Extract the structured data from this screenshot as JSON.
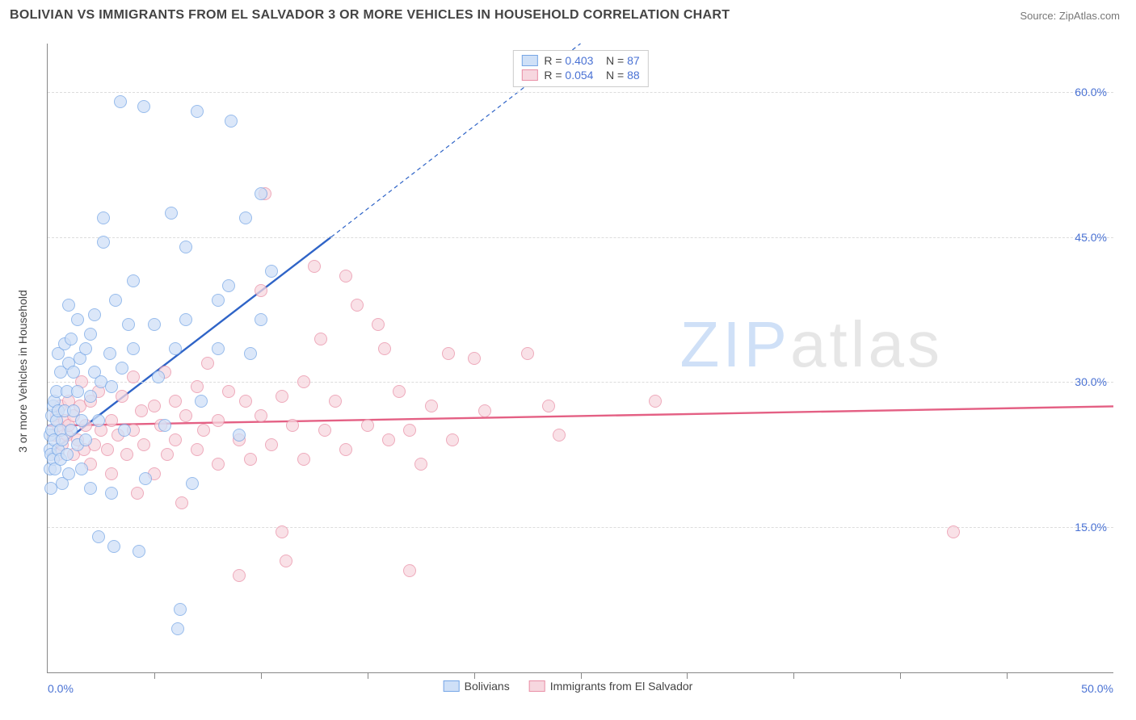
{
  "header": {
    "title": "BOLIVIAN VS IMMIGRANTS FROM EL SALVADOR 3 OR MORE VEHICLES IN HOUSEHOLD CORRELATION CHART",
    "source": "Source: ZipAtlas.com"
  },
  "chart": {
    "ylabel": "3 or more Vehicles in Household",
    "xlim": [
      0,
      50
    ],
    "ylim": [
      0,
      65
    ],
    "xticks": [
      0,
      50
    ],
    "xtick_labels": [
      "0.0%",
      "50.0%"
    ],
    "xticks_minor": [
      5,
      10,
      15,
      20,
      25,
      30,
      35,
      40,
      45
    ],
    "yticks": [
      15,
      30,
      45,
      60
    ],
    "ytick_labels": [
      "15.0%",
      "30.0%",
      "45.0%",
      "60.0%"
    ],
    "grid_color": "#dcdcdc",
    "axis_color": "#888888",
    "background": "#ffffff",
    "watermark": {
      "text_a": "ZIP",
      "text_b": "atlas",
      "color_a": "#cfe0f7",
      "color_b": "#e6e6e6"
    }
  },
  "series": {
    "a": {
      "label": "Bolivians",
      "R": "0.403",
      "N": "87",
      "marker_fill": "#cfe0f7",
      "marker_stroke": "#76a6e6",
      "line_color": "#2f64c7",
      "trend": {
        "x1": 0,
        "y1": 22.5,
        "x2": 13.3,
        "y2": 45.0
      },
      "trend_dash": {
        "x1": 13.3,
        "y1": 45.0,
        "x2": 25,
        "y2": 65
      },
      "points": [
        [
          0.1,
          21.0
        ],
        [
          0.1,
          23.0
        ],
        [
          0.12,
          24.5
        ],
        [
          0.15,
          19.0
        ],
        [
          0.15,
          22.5
        ],
        [
          0.18,
          26.5
        ],
        [
          0.2,
          25.0
        ],
        [
          0.25,
          27.5
        ],
        [
          0.25,
          22.0
        ],
        [
          0.3,
          24.0
        ],
        [
          0.3,
          28.0
        ],
        [
          0.35,
          21.0
        ],
        [
          0.4,
          26.0
        ],
        [
          0.4,
          29.0
        ],
        [
          0.5,
          23.0
        ],
        [
          0.5,
          27.0
        ],
        [
          0.5,
          33.0
        ],
        [
          0.6,
          22.0
        ],
        [
          0.6,
          25.0
        ],
        [
          0.6,
          31.0
        ],
        [
          0.7,
          19.5
        ],
        [
          0.7,
          24.0
        ],
        [
          0.8,
          27.0
        ],
        [
          0.8,
          34.0
        ],
        [
          0.9,
          22.5
        ],
        [
          0.9,
          29.0
        ],
        [
          1.0,
          20.5
        ],
        [
          1.0,
          32.0
        ],
        [
          1.0,
          38.0
        ],
        [
          1.1,
          25.0
        ],
        [
          1.1,
          34.5
        ],
        [
          1.2,
          27.0
        ],
        [
          1.2,
          31.0
        ],
        [
          1.4,
          23.5
        ],
        [
          1.4,
          29.0
        ],
        [
          1.4,
          36.5
        ],
        [
          1.5,
          32.5
        ],
        [
          1.6,
          21.0
        ],
        [
          1.6,
          26.0
        ],
        [
          1.8,
          24.0
        ],
        [
          1.8,
          33.5
        ],
        [
          2.0,
          19.0
        ],
        [
          2.0,
          28.5
        ],
        [
          2.0,
          35.0
        ],
        [
          2.2,
          31.0
        ],
        [
          2.2,
          37.0
        ],
        [
          2.4,
          14.0
        ],
        [
          2.4,
          26.0
        ],
        [
          2.5,
          30.0
        ],
        [
          2.6,
          47.0
        ],
        [
          2.9,
          33.0
        ],
        [
          3.0,
          18.5
        ],
        [
          3.0,
          29.5
        ],
        [
          3.1,
          13.0
        ],
        [
          3.4,
          59.0
        ],
        [
          3.5,
          31.5
        ],
        [
          3.6,
          25.0
        ],
        [
          4.0,
          33.5
        ],
        [
          4.0,
          40.5
        ],
        [
          4.3,
          12.5
        ],
        [
          4.5,
          58.5
        ],
        [
          4.6,
          20.0
        ],
        [
          5.0,
          36.0
        ],
        [
          5.2,
          30.5
        ],
        [
          5.5,
          25.5
        ],
        [
          5.8,
          47.5
        ],
        [
          6.0,
          33.5
        ],
        [
          6.1,
          4.5
        ],
        [
          6.2,
          6.5
        ],
        [
          6.5,
          44.0
        ],
        [
          6.5,
          36.5
        ],
        [
          6.8,
          19.5
        ],
        [
          7.0,
          58.0
        ],
        [
          7.2,
          28.0
        ],
        [
          8.0,
          33.5
        ],
        [
          8.0,
          38.5
        ],
        [
          8.5,
          40.0
        ],
        [
          8.6,
          57.0
        ],
        [
          9.0,
          24.5
        ],
        [
          9.3,
          47.0
        ],
        [
          9.5,
          33.0
        ],
        [
          10.0,
          49.5
        ],
        [
          10.0,
          36.5
        ],
        [
          10.5,
          41.5
        ],
        [
          2.6,
          44.5
        ],
        [
          3.2,
          38.5
        ],
        [
          3.8,
          36.0
        ]
      ]
    },
    "b": {
      "label": "Immigants from El Salvador",
      "label_full": "Immigrants from El Salvador",
      "R": "0.054",
      "N": "88",
      "marker_fill": "#f7d7df",
      "marker_stroke": "#e98fa6",
      "line_color": "#e46084",
      "trend": {
        "x1": 0,
        "y1": 25.5,
        "x2": 50,
        "y2": 27.5
      },
      "points": [
        [
          0.3,
          24.5
        ],
        [
          0.4,
          26.5
        ],
        [
          0.5,
          22.5
        ],
        [
          0.5,
          25.5
        ],
        [
          0.6,
          27.5
        ],
        [
          0.7,
          23.5
        ],
        [
          0.8,
          26.0
        ],
        [
          0.9,
          24.5
        ],
        [
          1.0,
          25.5
        ],
        [
          1.0,
          28.0
        ],
        [
          1.2,
          22.5
        ],
        [
          1.2,
          26.5
        ],
        [
          1.4,
          24.0
        ],
        [
          1.5,
          27.5
        ],
        [
          1.6,
          30.0
        ],
        [
          1.7,
          23.0
        ],
        [
          1.8,
          25.5
        ],
        [
          2.0,
          21.5
        ],
        [
          2.0,
          28.0
        ],
        [
          2.2,
          23.5
        ],
        [
          2.4,
          29.0
        ],
        [
          2.5,
          25.0
        ],
        [
          2.8,
          23.0
        ],
        [
          3.0,
          26.0
        ],
        [
          3.0,
          20.5
        ],
        [
          3.3,
          24.5
        ],
        [
          3.5,
          28.5
        ],
        [
          3.7,
          22.5
        ],
        [
          4.0,
          25.0
        ],
        [
          4.0,
          30.5
        ],
        [
          4.2,
          18.5
        ],
        [
          4.4,
          27.0
        ],
        [
          4.5,
          23.5
        ],
        [
          5.0,
          27.5
        ],
        [
          5.0,
          20.5
        ],
        [
          5.3,
          25.5
        ],
        [
          5.5,
          31.0
        ],
        [
          5.6,
          22.5
        ],
        [
          6.0,
          24.0
        ],
        [
          6.0,
          28.0
        ],
        [
          6.3,
          17.5
        ],
        [
          6.5,
          26.5
        ],
        [
          7.0,
          23.0
        ],
        [
          7.0,
          29.5
        ],
        [
          7.3,
          25.0
        ],
        [
          7.5,
          32.0
        ],
        [
          8.0,
          21.5
        ],
        [
          8.0,
          26.0
        ],
        [
          8.5,
          29.0
        ],
        [
          9.0,
          24.0
        ],
        [
          9.0,
          10.0
        ],
        [
          9.3,
          28.0
        ],
        [
          9.5,
          22.0
        ],
        [
          10.0,
          26.5
        ],
        [
          10.0,
          39.5
        ],
        [
          10.2,
          49.5
        ],
        [
          10.5,
          23.5
        ],
        [
          11.0,
          28.5
        ],
        [
          11.0,
          14.5
        ],
        [
          11.2,
          11.5
        ],
        [
          11.5,
          25.5
        ],
        [
          12.0,
          30.0
        ],
        [
          12.0,
          22.0
        ],
        [
          12.5,
          42.0
        ],
        [
          12.8,
          34.5
        ],
        [
          13.0,
          25.0
        ],
        [
          13.5,
          28.0
        ],
        [
          14.0,
          23.0
        ],
        [
          14.0,
          41.0
        ],
        [
          14.5,
          38.0
        ],
        [
          15.0,
          25.5
        ],
        [
          15.5,
          36.0
        ],
        [
          15.8,
          33.5
        ],
        [
          16.0,
          24.0
        ],
        [
          16.5,
          29.0
        ],
        [
          17.0,
          25.0
        ],
        [
          17.0,
          10.5
        ],
        [
          17.5,
          21.5
        ],
        [
          18.0,
          27.5
        ],
        [
          18.8,
          33.0
        ],
        [
          19.0,
          24.0
        ],
        [
          20.0,
          32.5
        ],
        [
          20.5,
          27.0
        ],
        [
          22.5,
          33.0
        ],
        [
          23.5,
          27.5
        ],
        [
          24.0,
          24.5
        ],
        [
          28.5,
          28.0
        ],
        [
          42.5,
          14.5
        ]
      ]
    }
  },
  "legend_top": {
    "r_label": "R =",
    "n_label": "N ="
  },
  "legend_bottom": {
    "a": "Bolivians",
    "b": "Immigrants from El Salvador"
  }
}
